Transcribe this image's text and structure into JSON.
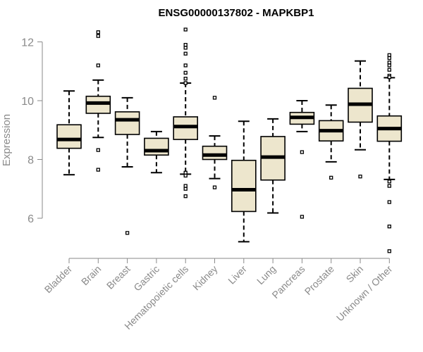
{
  "chart_data": {
    "type": "boxplot",
    "title": "ENSG00000137802 - MAPKBP1",
    "xlabel": "",
    "ylabel": "Expression",
    "ylim": [
      4.7,
      12.5
    ],
    "yticks": [
      6,
      8,
      10,
      12
    ],
    "grid": false,
    "colors": {
      "box_fill": "#ede6cd",
      "box_stroke": "#000000",
      "axis": "#8a8a8a"
    },
    "categories": [
      "Bladder",
      "Brain",
      "Breast",
      "Gastric",
      "Hematopoietic cells",
      "Kidney",
      "Liver",
      "Lung",
      "Pancreas",
      "Prostate",
      "Skin",
      "Unknown / Other"
    ],
    "series": [
      {
        "name": "Bladder",
        "whisker_low": 7.48,
        "q1": 8.38,
        "median": 8.68,
        "q3": 9.18,
        "whisker_high": 10.33,
        "outliers": []
      },
      {
        "name": "Brain",
        "whisker_low": 8.75,
        "q1": 9.57,
        "median": 9.92,
        "q3": 10.15,
        "whisker_high": 10.7,
        "outliers": [
          12.33,
          12.2,
          11.2,
          8.32,
          7.65
        ]
      },
      {
        "name": "Breast",
        "whisker_low": 7.75,
        "q1": 8.85,
        "median": 9.35,
        "q3": 9.62,
        "whisker_high": 10.1,
        "outliers": [
          5.5
        ]
      },
      {
        "name": "Gastric",
        "whisker_low": 7.55,
        "q1": 8.15,
        "median": 8.3,
        "q3": 8.72,
        "whisker_high": 8.95,
        "outliers": []
      },
      {
        "name": "Hematopoietic cells",
        "whisker_low": 7.5,
        "q1": 8.68,
        "median": 9.12,
        "q3": 9.45,
        "whisker_high": 10.6,
        "outliers": [
          12.42,
          11.9,
          11.8,
          11.6,
          11.2,
          10.95,
          10.75,
          10.6,
          7.55,
          7.45,
          7.1,
          7.0,
          6.75
        ]
      },
      {
        "name": "Kidney",
        "whisker_low": 7.35,
        "q1": 8.0,
        "median": 8.15,
        "q3": 8.45,
        "whisker_high": 8.8,
        "outliers": [
          10.1,
          7.05
        ]
      },
      {
        "name": "Liver",
        "whisker_low": 5.2,
        "q1": 6.23,
        "median": 6.97,
        "q3": 7.97,
        "whisker_high": 9.3,
        "outliers": []
      },
      {
        "name": "Lung",
        "whisker_low": 6.18,
        "q1": 7.3,
        "median": 8.08,
        "q3": 8.78,
        "whisker_high": 9.38,
        "outliers": []
      },
      {
        "name": "Pancreas",
        "whisker_low": 8.95,
        "q1": 9.2,
        "median": 9.43,
        "q3": 9.6,
        "whisker_high": 10.0,
        "outliers": [
          8.25,
          6.05
        ]
      },
      {
        "name": "Prostate",
        "whisker_low": 7.92,
        "q1": 8.63,
        "median": 8.98,
        "q3": 9.32,
        "whisker_high": 9.85,
        "outliers": [
          7.38
        ]
      },
      {
        "name": "Skin",
        "whisker_low": 8.33,
        "q1": 9.27,
        "median": 9.88,
        "q3": 10.42,
        "whisker_high": 11.35,
        "outliers": [
          7.42
        ]
      },
      {
        "name": "Unknown / Other",
        "whisker_low": 7.32,
        "q1": 8.62,
        "median": 9.05,
        "q3": 9.48,
        "whisker_high": 10.78,
        "outliers": [
          11.55,
          11.45,
          11.3,
          11.2,
          11.05,
          10.85,
          10.8,
          7.25,
          7.1,
          6.55,
          5.72,
          4.88
        ]
      }
    ]
  }
}
